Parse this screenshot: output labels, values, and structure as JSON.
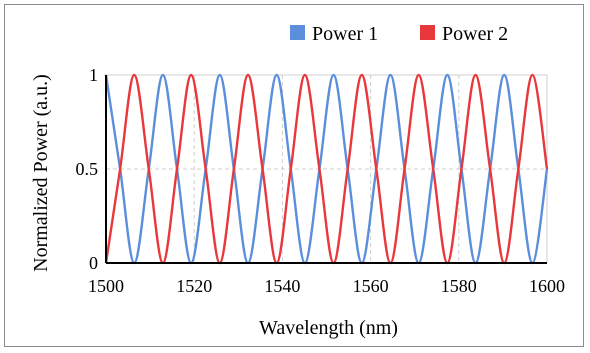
{
  "chart_data": {
    "type": "line",
    "title": "",
    "xlabel": "Wavelength (nm)",
    "ylabel": "Normalized Power (a.u.)",
    "xlim": [
      1500,
      1600
    ],
    "ylim": [
      0,
      1
    ],
    "x_ticks": [
      "1500",
      "1520",
      "1540",
      "1560",
      "1580",
      "1600"
    ],
    "y_ticks": [
      "0",
      "0.5",
      "1"
    ],
    "x_tick_values": [
      1500,
      1520,
      1540,
      1560,
      1580,
      1600
    ],
    "y_tick_values": [
      0,
      0.5,
      1
    ],
    "grid": true,
    "legend_position": "top-right",
    "series": [
      {
        "name": "Power 1",
        "color": "#5b8fdc",
        "x": [
          1500,
          1503.2,
          1506.4,
          1509.7,
          1512.9,
          1516.1,
          1519.3,
          1522.6,
          1525.8,
          1529.0,
          1532.2,
          1535.5,
          1538.7,
          1541.9,
          1545.1,
          1548.4,
          1551.6,
          1554.8,
          1558.0,
          1561.3,
          1564.5,
          1567.7,
          1570.9,
          1574.2,
          1577.4,
          1580.6,
          1583.8,
          1587.1,
          1590.3,
          1593.5,
          1596.7,
          1600
        ],
        "y": [
          1,
          0.5,
          0,
          0.5,
          1,
          0.5,
          0,
          0.5,
          1,
          0.5,
          0,
          0.5,
          1,
          0.5,
          0,
          0.5,
          1,
          0.5,
          0,
          0.5,
          1,
          0.5,
          0,
          0.5,
          1,
          0.5,
          0,
          0.5,
          1,
          0.5,
          0,
          0.5
        ]
      },
      {
        "name": "Power 2",
        "color": "#e8383c",
        "x": [
          1500,
          1503.2,
          1506.4,
          1509.7,
          1512.9,
          1516.1,
          1519.3,
          1522.6,
          1525.8,
          1529.0,
          1532.2,
          1535.5,
          1538.7,
          1541.9,
          1545.1,
          1548.4,
          1551.6,
          1554.8,
          1558.0,
          1561.3,
          1564.5,
          1567.7,
          1570.9,
          1574.2,
          1577.4,
          1580.6,
          1583.8,
          1587.1,
          1590.3,
          1593.5,
          1596.7,
          1600
        ],
        "y": [
          0,
          0.5,
          1,
          0.5,
          0,
          0.5,
          1,
          0.5,
          0,
          0.5,
          1,
          0.5,
          0,
          0.5,
          1,
          0.5,
          0,
          0.5,
          1,
          0.5,
          0,
          0.5,
          1,
          0.5,
          0,
          0.5,
          1,
          0.5,
          0,
          0.5,
          1,
          0.5
        ]
      }
    ]
  }
}
